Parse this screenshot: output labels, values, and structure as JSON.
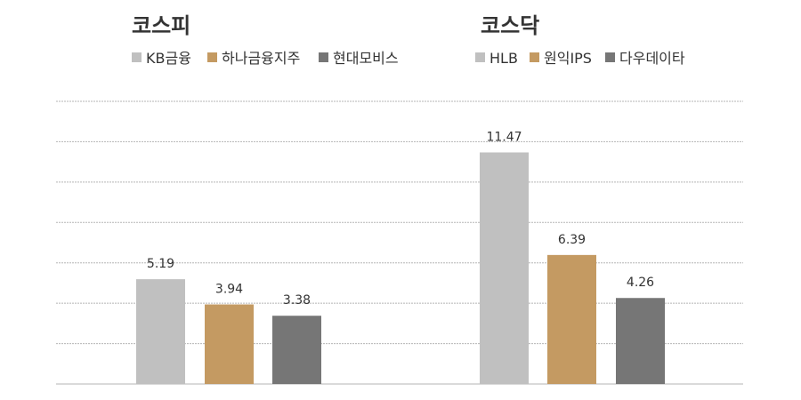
{
  "chart_data": [
    {
      "type": "bar",
      "title": "코스피",
      "categories": [
        "KB금융",
        "하나금융지주",
        "현대모비스"
      ],
      "values": [
        5.19,
        3.94,
        3.38
      ],
      "data_labels": [
        "5.19",
        "3.94",
        "3.38"
      ],
      "colors": [
        "#c0c0c0",
        "#c49a62",
        "#767676"
      ],
      "legend": "top",
      "ylim": [
        0,
        14
      ],
      "grid_step": 2,
      "grid": true
    },
    {
      "type": "bar",
      "title": "코스닥",
      "categories": [
        "HLB",
        "원익IPS",
        "다우데이타"
      ],
      "values": [
        11.47,
        6.39,
        4.26
      ],
      "data_labels": [
        "11.47",
        "6.39",
        "4.26"
      ],
      "colors": [
        "#c0c0c0",
        "#c49a62",
        "#767676"
      ],
      "legend": "top",
      "ylim": [
        0,
        14
      ],
      "grid_step": 2,
      "grid": true
    }
  ]
}
